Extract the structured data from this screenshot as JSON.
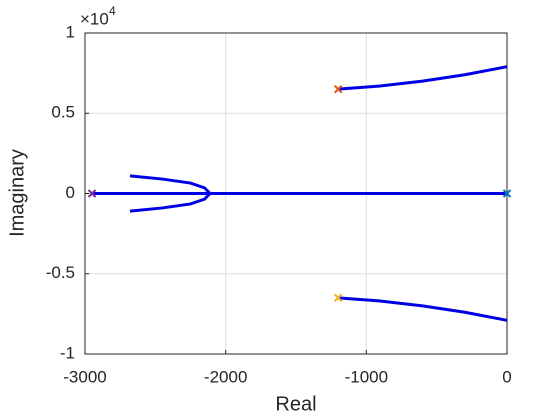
{
  "chart_data": {
    "type": "line",
    "xlabel": "Real",
    "ylabel": "Imaginary",
    "y_exponent": {
      "base": "×10",
      "power": "4"
    },
    "xlim": [
      -3000,
      0
    ],
    "xticks": [
      -3000,
      -2000,
      -1000,
      0
    ],
    "ylim": [
      -1,
      1
    ],
    "yticks": [
      -1,
      -0.5,
      0,
      0.5,
      1
    ],
    "grid": true,
    "series": [
      {
        "color": "#0000e6",
        "x": [
          -1200,
          -900,
          -600,
          -300,
          0
        ],
        "values": [
          0.65,
          0.67,
          0.7,
          0.74,
          0.79
        ]
      },
      {
        "color": "#0000e6",
        "x": [
          -1200,
          -900,
          -600,
          -300,
          0
        ],
        "values": [
          -0.65,
          -0.67,
          -0.7,
          -0.74,
          -0.79
        ]
      },
      {
        "color": "#0000e6",
        "x": [
          -2950,
          0
        ],
        "values": [
          0,
          0
        ]
      },
      {
        "color": "#0000e6",
        "x": [
          -2680,
          -2450,
          -2250,
          -2150,
          -2111,
          -2150,
          -2250,
          -2450,
          -2680
        ],
        "values": [
          0.11,
          0.09,
          0.065,
          0.035,
          0,
          -0.035,
          -0.065,
          -0.09,
          -0.11
        ]
      }
    ],
    "poles": {
      "x": [
        -1200,
        -1200,
        -2950,
        0
      ],
      "values": [
        0.65,
        -0.65,
        0,
        0
      ],
      "colors": [
        "#d95319",
        "#edb120",
        "#7e2f8e",
        "#0072bd"
      ]
    }
  }
}
